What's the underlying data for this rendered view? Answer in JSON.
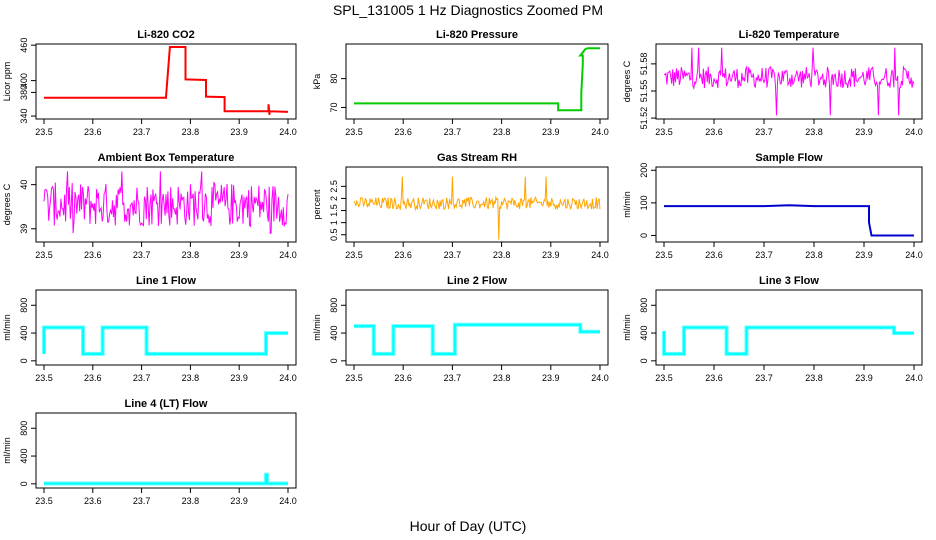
{
  "figure": {
    "title": "SPL_131005  1 Hz Diagnostics Zoomed PM",
    "xlabel": "Hour of Day (UTC)"
  },
  "colors": {
    "red": "#ff0000",
    "green": "#00cc00",
    "magenta": "#ff00ff",
    "orange": "#ffa500",
    "blue": "#0000cd",
    "cyan": "#00ffff"
  },
  "chart_data": [
    {
      "type": "line",
      "title": "Li-820 CO2",
      "ylabel": "Licor ppm",
      "color": "red",
      "style": "line",
      "xlim": [
        23.5,
        24.0
      ],
      "ylim": [
        335,
        462
      ],
      "xticks": [
        "23.5",
        "23.6",
        "23.7",
        "23.8",
        "23.9",
        "24.0"
      ],
      "yticks": [
        340,
        380,
        400,
        460
      ],
      "x": [
        23.5,
        23.75,
        23.75,
        23.758,
        23.758,
        23.79,
        23.79,
        23.832,
        23.832,
        23.87,
        23.87,
        23.96,
        23.96,
        23.962,
        23.962,
        24.0
      ],
      "y": [
        371,
        371,
        372,
        457,
        457,
        457,
        402,
        401,
        373,
        372,
        348,
        348,
        360,
        342,
        348,
        347
      ]
    },
    {
      "type": "line",
      "title": "Li-820 Pressure",
      "ylabel": "kPa",
      "color": "green",
      "style": "line",
      "xlim": [
        23.5,
        24.0
      ],
      "ylim": [
        66,
        92
      ],
      "xticks": [
        "23.5",
        "23.6",
        "23.7",
        "23.8",
        "23.9",
        "24.0"
      ],
      "yticks": [
        70,
        80
      ],
      "x": [
        23.5,
        23.915,
        23.915,
        23.962,
        23.962,
        23.965,
        23.965,
        23.96,
        23.97,
        23.975,
        24.0
      ],
      "y": [
        71.4,
        71.4,
        69.0,
        69.0,
        75,
        85,
        88,
        88,
        90.2,
        90.5,
        90.5
      ]
    },
    {
      "type": "line",
      "title": "Li-820 Temperature",
      "ylabel": "degrees C",
      "color": "magenta",
      "style": "noise",
      "xlim": [
        23.5,
        24.0
      ],
      "ylim": [
        51.519,
        51.602
      ],
      "xticks": [
        "23.5",
        "23.6",
        "23.7",
        "23.8",
        "23.9",
        "24.0"
      ],
      "yticks": [
        51.52,
        51.55,
        51.58
      ],
      "base": 51.565,
      "spread": 0.012,
      "spikes": [
        51.598,
        51.523
      ],
      "x_noise_end": 24.0
    },
    {
      "type": "line",
      "title": "Ambient Box Temperature",
      "ylabel": "degrees C",
      "color": "magenta",
      "style": "noise",
      "xlim": [
        23.5,
        24.0
      ],
      "ylim": [
        38.7,
        40.4
      ],
      "xticks": [
        "23.5",
        "23.6",
        "23.7",
        "23.8",
        "23.9",
        "24.0"
      ],
      "yticks": [
        39.0,
        40.0
      ],
      "base": 39.55,
      "spread": 0.5,
      "spikes": [
        40.3,
        38.9
      ],
      "x_noise_end": 24.0
    },
    {
      "type": "scatter",
      "title": "Gas Stream RH",
      "ylabel": "percent",
      "color": "orange",
      "style": "noise",
      "xlim": [
        23.5,
        24.0
      ],
      "ylim": [
        0.2,
        3.3
      ],
      "xticks": [
        "23.5",
        "23.6",
        "23.7",
        "23.8",
        "23.9",
        "24.0"
      ],
      "yticks": [
        0.5,
        1.0,
        1.5,
        2.0,
        2.5
      ],
      "base": 1.8,
      "spread": 0.25,
      "spikes": [
        2.9,
        0.3
      ],
      "x_noise_end": 24.0
    },
    {
      "type": "line",
      "title": "Sample Flow",
      "ylabel": "ml/min",
      "color": "blue",
      "style": "line",
      "xlim": [
        23.5,
        24.0
      ],
      "ylim": [
        -20,
        210
      ],
      "xticks": [
        "23.5",
        "23.6",
        "23.7",
        "23.8",
        "23.9",
        "24.0"
      ],
      "yticks": [
        0,
        100,
        200
      ],
      "x": [
        23.5,
        23.7,
        23.75,
        23.8,
        23.91,
        23.91,
        23.915,
        24.0
      ],
      "y": [
        90,
        90,
        93,
        90,
        90,
        40,
        0,
        0
      ]
    },
    {
      "type": "line",
      "title": "Line 1 Flow",
      "ylabel": "ml/min",
      "color": "cyan",
      "style": "line",
      "xlim": [
        23.5,
        24.0
      ],
      "ylim": [
        -60,
        1020
      ],
      "xticks": [
        "23.5",
        "23.6",
        "23.7",
        "23.8",
        "23.9",
        "24.0"
      ],
      "yticks": [
        0,
        400,
        800
      ],
      "x": [
        23.5,
        23.5,
        23.505,
        23.58,
        23.58,
        23.62,
        23.62,
        23.71,
        23.71,
        23.955,
        23.955,
        24.0
      ],
      "y": [
        100,
        480,
        480,
        480,
        100,
        100,
        480,
        480,
        100,
        100,
        400,
        400
      ]
    },
    {
      "type": "line",
      "title": "Line 2 Flow",
      "ylabel": "ml/min",
      "color": "cyan",
      "style": "line",
      "xlim": [
        23.5,
        24.0
      ],
      "ylim": [
        -60,
        1020
      ],
      "xticks": [
        "23.5",
        "23.6",
        "23.7",
        "23.8",
        "23.9",
        "24.0"
      ],
      "yticks": [
        0,
        400,
        800
      ],
      "x": [
        23.5,
        23.54,
        23.54,
        23.58,
        23.58,
        23.66,
        23.66,
        23.705,
        23.705,
        23.96,
        23.96,
        24.0
      ],
      "y": [
        500,
        500,
        100,
        100,
        500,
        500,
        100,
        100,
        520,
        520,
        420,
        420
      ]
    },
    {
      "type": "line",
      "title": "Line 3 Flow",
      "ylabel": "ml/min",
      "color": "cyan",
      "style": "line",
      "xlim": [
        23.5,
        24.0
      ],
      "ylim": [
        -60,
        1020
      ],
      "xticks": [
        "23.5",
        "23.6",
        "23.7",
        "23.8",
        "23.9",
        "24.0"
      ],
      "yticks": [
        0,
        400,
        800
      ],
      "x": [
        23.5,
        23.5,
        23.505,
        23.54,
        23.54,
        23.625,
        23.625,
        23.665,
        23.665,
        23.96,
        23.96,
        24.0
      ],
      "y": [
        430,
        100,
        100,
        100,
        480,
        480,
        100,
        100,
        480,
        480,
        400,
        400
      ]
    },
    {
      "type": "line",
      "title": "Line 4 (LT) Flow",
      "ylabel": "ml/min",
      "color": "cyan",
      "style": "line",
      "xlim": [
        23.5,
        24.0
      ],
      "ylim": [
        -60,
        1020
      ],
      "xticks": [
        "23.5",
        "23.6",
        "23.7",
        "23.8",
        "23.9",
        "24.0"
      ],
      "yticks": [
        0,
        400,
        800
      ],
      "x": [
        23.5,
        23.955,
        23.955,
        23.957,
        23.957,
        24.0
      ],
      "y": [
        5,
        5,
        130,
        130,
        5,
        5
      ]
    }
  ]
}
